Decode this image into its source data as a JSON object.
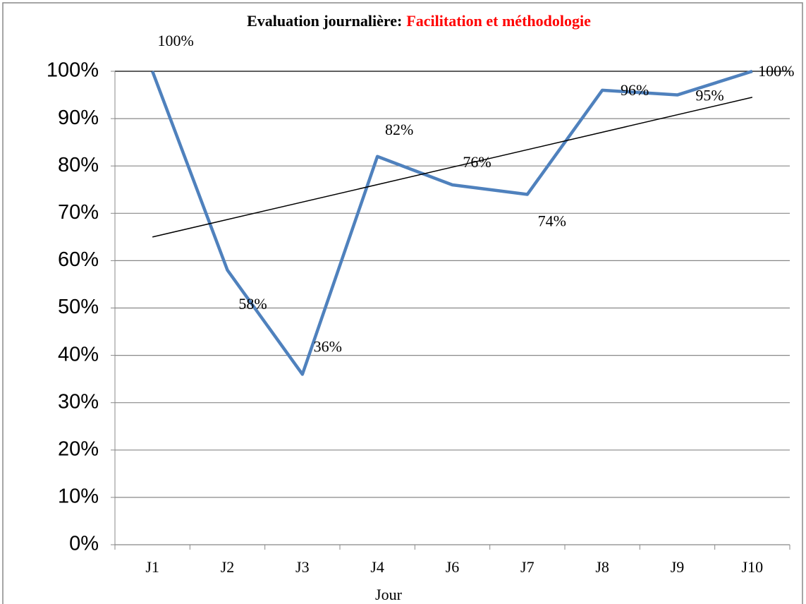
{
  "chart_data": {
    "type": "line",
    "title": "Evaluation journalière:",
    "title_highlight": "Facilitation et méthodologie",
    "x_label": "Jour",
    "categories": [
      "J1",
      "J2",
      "J3",
      "J4",
      "J6",
      "J7",
      "J8",
      "J9",
      "J10"
    ],
    "series": [
      {
        "name": "Evaluation",
        "color": "#4f81bd",
        "values": [
          100,
          58,
          36,
          82,
          76,
          74,
          96,
          95,
          100
        ],
        "value_labels": [
          "100%",
          "58%",
          "36%",
          "82%",
          "76%",
          "74%",
          "96%",
          "95%",
          "100%"
        ]
      }
    ],
    "trendline": {
      "color": "#000000",
      "values": [
        65,
        94.5
      ]
    },
    "ylim": [
      0,
      100
    ],
    "yticks": [
      {
        "value": 0,
        "label": "0%"
      },
      {
        "value": 10,
        "label": "10%"
      },
      {
        "value": 20,
        "label": "20%"
      },
      {
        "value": 30,
        "label": "30%"
      },
      {
        "value": 40,
        "label": "40%"
      },
      {
        "value": 50,
        "label": "50%"
      },
      {
        "value": 60,
        "label": "60%"
      },
      {
        "value": 70,
        "label": "70%"
      },
      {
        "value": 80,
        "label": "80%"
      },
      {
        "value": 90,
        "label": "90%"
      },
      {
        "value": 100,
        "label": "100%"
      }
    ],
    "grid": true
  }
}
